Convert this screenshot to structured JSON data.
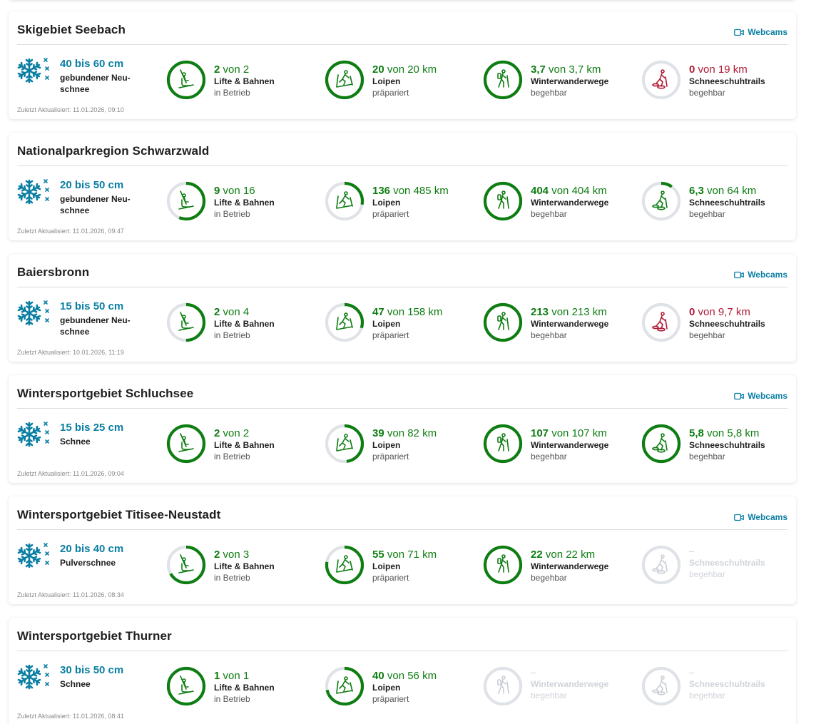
{
  "labels": {
    "webcams": "Webcams",
    "updated_prefix": "Zuletzt Aktualisiert:",
    "unit_separator": "von"
  },
  "colors": {
    "accent": "#0a7ea3",
    "green": "#0e7d12",
    "red": "#b01a35",
    "track": "#dfe2e7",
    "inactive": "#d0d4da"
  },
  "areas": [
    {
      "name": "Skigebiet Seebach",
      "webcams": true,
      "snow": {
        "value": "40 bis 60 cm",
        "type": "gebundener Neu-schnee",
        "updated": "Zuletzt Aktualisiert: 11.01.2026, 09:10"
      },
      "stats": [
        {
          "icon": "ski-lift-icon",
          "status": "green",
          "open": "2",
          "total": "2",
          "unit": "",
          "fraction": 1.0,
          "label": "Lifte & Bahnen",
          "sub": "in Betrieb"
        },
        {
          "icon": "cross-country-ski-icon",
          "status": "green",
          "open": "20",
          "total": "20",
          "unit": " km",
          "fraction": 1.0,
          "label": "Loipen",
          "sub": "präpariert"
        },
        {
          "icon": "hiker-icon",
          "status": "green",
          "open": "3,7",
          "total": "3,7",
          "unit": " km",
          "fraction": 1.0,
          "label": "Winterwanderwege",
          "sub": "begehbar"
        },
        {
          "icon": "snowshoe-icon",
          "status": "red",
          "open": "0",
          "total": "19",
          "unit": " km",
          "fraction": 0.0,
          "label": "Schneeschuhtrails",
          "sub": "begehbar"
        }
      ]
    },
    {
      "name": "Nationalparkregion Schwarzwald",
      "webcams": false,
      "snow": {
        "value": "20 bis 50 cm",
        "type": "gebundener Neu-schnee",
        "updated": "Zuletzt Aktualisiert: 11.01.2026, 09:47"
      },
      "stats": [
        {
          "icon": "ski-lift-icon",
          "status": "green",
          "open": "9",
          "total": "16",
          "unit": "",
          "fraction": 0.5625,
          "label": "Lifte & Bahnen",
          "sub": "in Betrieb"
        },
        {
          "icon": "cross-country-ski-icon",
          "status": "green",
          "open": "136",
          "total": "485",
          "unit": " km",
          "fraction": 0.28,
          "label": "Loipen",
          "sub": "präpariert"
        },
        {
          "icon": "hiker-icon",
          "status": "green",
          "open": "404",
          "total": "404",
          "unit": " km",
          "fraction": 1.0,
          "label": "Winterwanderwege",
          "sub": "begehbar"
        },
        {
          "icon": "snowshoe-icon",
          "status": "green",
          "open": "6,3",
          "total": "64",
          "unit": " km",
          "fraction": 0.1,
          "label": "Schneeschuhtrails",
          "sub": "begehbar"
        }
      ]
    },
    {
      "name": "Baiersbronn",
      "webcams": true,
      "snow": {
        "value": "15 bis 50 cm",
        "type": "gebundener Neu-schnee",
        "updated": "Zuletzt Aktualisiert: 10.01.2026, 11:19"
      },
      "stats": [
        {
          "icon": "ski-lift-icon",
          "status": "green",
          "open": "2",
          "total": "4",
          "unit": "",
          "fraction": 0.5,
          "label": "Lifte & Bahnen",
          "sub": "in Betrieb"
        },
        {
          "icon": "cross-country-ski-icon",
          "status": "green",
          "open": "47",
          "total": "158",
          "unit": " km",
          "fraction": 0.3,
          "label": "Loipen",
          "sub": "präpariert"
        },
        {
          "icon": "hiker-icon",
          "status": "green",
          "open": "213",
          "total": "213",
          "unit": " km",
          "fraction": 1.0,
          "label": "Winterwanderwege",
          "sub": "begehbar"
        },
        {
          "icon": "snowshoe-icon",
          "status": "red",
          "open": "0",
          "total": "9,7",
          "unit": " km",
          "fraction": 0.0,
          "label": "Schneeschuhtrails",
          "sub": "begehbar"
        }
      ]
    },
    {
      "name": "Wintersportgebiet Schluchsee",
      "webcams": true,
      "snow": {
        "value": "15 bis 25 cm",
        "type": "Schnee",
        "updated": "Zuletzt Aktualisiert: 11.01.2026, 09:04"
      },
      "stats": [
        {
          "icon": "ski-lift-icon",
          "status": "green",
          "open": "2",
          "total": "2",
          "unit": "",
          "fraction": 1.0,
          "label": "Lifte & Bahnen",
          "sub": "in Betrieb"
        },
        {
          "icon": "cross-country-ski-icon",
          "status": "green",
          "open": "39",
          "total": "82",
          "unit": " km",
          "fraction": 0.48,
          "label": "Loipen",
          "sub": "präpariert"
        },
        {
          "icon": "hiker-icon",
          "status": "green",
          "open": "107",
          "total": "107",
          "unit": " km",
          "fraction": 1.0,
          "label": "Winterwanderwege",
          "sub": "begehbar"
        },
        {
          "icon": "snowshoe-icon",
          "status": "green",
          "open": "5,8",
          "total": "5,8",
          "unit": " km",
          "fraction": 1.0,
          "label": "Schneeschuhtrails",
          "sub": "begehbar"
        }
      ]
    },
    {
      "name": "Wintersportgebiet Titisee-Neustadt",
      "webcams": true,
      "snow": {
        "value": "20 bis 40 cm",
        "type": "Pulverschnee",
        "updated": "Zuletzt Aktualisiert: 11.01.2026, 08:34"
      },
      "stats": [
        {
          "icon": "ski-lift-icon",
          "status": "green",
          "open": "2",
          "total": "3",
          "unit": "",
          "fraction": 0.667,
          "label": "Lifte & Bahnen",
          "sub": "in Betrieb"
        },
        {
          "icon": "cross-country-ski-icon",
          "status": "green",
          "open": "55",
          "total": "71",
          "unit": " km",
          "fraction": 0.775,
          "label": "Loipen",
          "sub": "präpariert"
        },
        {
          "icon": "hiker-icon",
          "status": "green",
          "open": "22",
          "total": "22",
          "unit": " km",
          "fraction": 1.0,
          "label": "Winterwanderwege",
          "sub": "begehbar"
        },
        {
          "icon": "snowshoe-icon",
          "status": "inactive",
          "placeholder": "–",
          "fraction": 0.0,
          "label": "Schneeschuhtrails",
          "sub": "begehbar"
        }
      ]
    },
    {
      "name": "Wintersportgebiet Thurner",
      "webcams": false,
      "snow": {
        "value": "30 bis 50 cm",
        "type": "Schnee",
        "updated": "Zuletzt Aktualisiert: 11.01.2026, 08:41"
      },
      "stats": [
        {
          "icon": "ski-lift-icon",
          "status": "green",
          "open": "1",
          "total": "1",
          "unit": "",
          "fraction": 1.0,
          "label": "Lifte & Bahnen",
          "sub": "in Betrieb"
        },
        {
          "icon": "cross-country-ski-icon",
          "status": "green",
          "open": "40",
          "total": "56",
          "unit": " km",
          "fraction": 0.714,
          "label": "Loipen",
          "sub": "präpariert"
        },
        {
          "icon": "hiker-icon",
          "status": "inactive",
          "placeholder": "–",
          "fraction": 0.0,
          "label": "Winterwanderwege",
          "sub": "begehbar"
        },
        {
          "icon": "snowshoe-icon",
          "status": "inactive",
          "placeholder": "–",
          "fraction": 0.0,
          "label": "Schneeschuhtrails",
          "sub": "begehbar"
        }
      ]
    }
  ]
}
